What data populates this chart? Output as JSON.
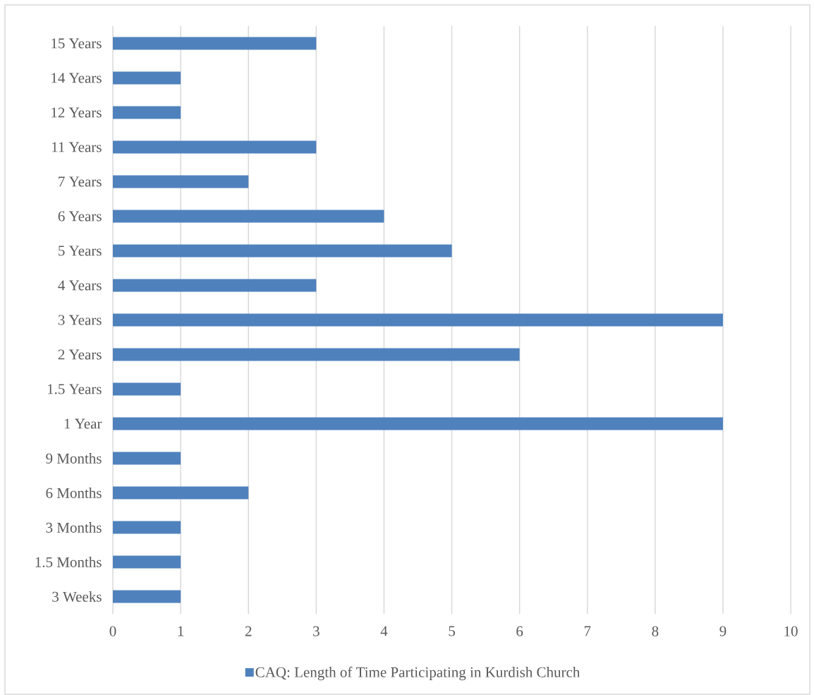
{
  "chart_data": {
    "type": "bar",
    "orientation": "horizontal",
    "categories": [
      "15 Years",
      "14 Years",
      "12 Years",
      "11 Years",
      "7 Years",
      "6 Years",
      "5 Years",
      "4 Years",
      "3 Years",
      "2 Years",
      "1.5 Years",
      "1 Year",
      "9 Months",
      "6 Months",
      "3 Months",
      "1.5 Months",
      "3 Weeks"
    ],
    "series": [
      {
        "name": "CAQ: Length of Time Participating in Kurdish Church",
        "color": "#4f81bd",
        "values": [
          3,
          1,
          1,
          3,
          2,
          4,
          5,
          3,
          9,
          6,
          1,
          9,
          1,
          2,
          1,
          1,
          1
        ]
      }
    ],
    "xlim": [
      0,
      10
    ],
    "xticks": [
      0,
      1,
      2,
      3,
      4,
      5,
      6,
      7,
      8,
      9,
      10
    ],
    "grid": "x",
    "legend": "bottom"
  }
}
